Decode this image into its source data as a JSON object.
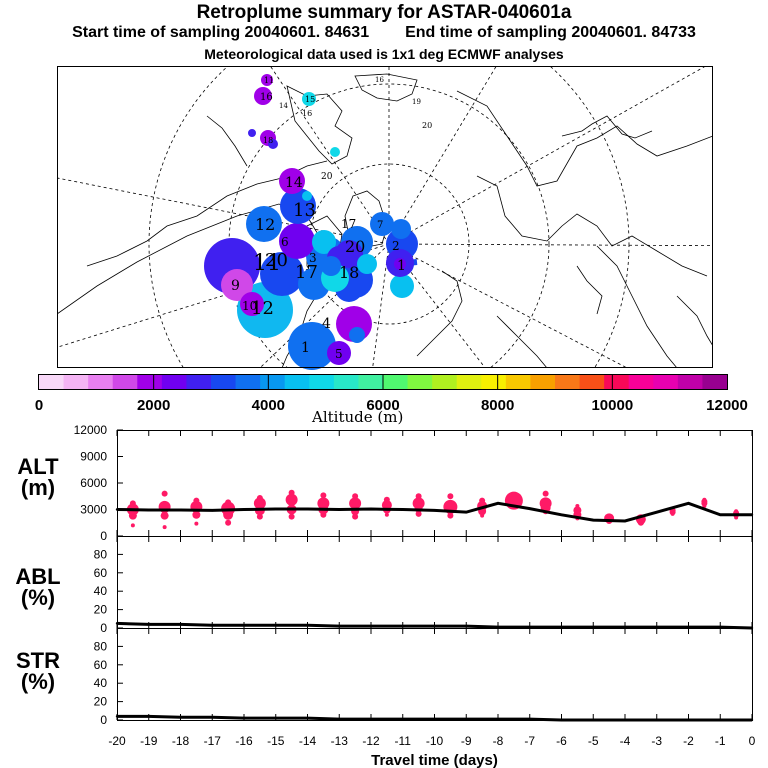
{
  "title": "Retroplume summary for ASTAR-040601a",
  "sampling": {
    "start": "Start time of sampling 20040601. 84631",
    "end": "End time of sampling 20040601. 84733"
  },
  "met_note": "Meteorological data used is 1x1 deg ECMWF analyses",
  "colors": {
    "track": "#000000",
    "dot": "#ff1a66",
    "map_line": "#000000",
    "frame": "#000000"
  },
  "colorbar": {
    "ticks": [
      "0",
      "2000",
      "4000",
      "6000",
      "8000",
      "10000",
      "12000"
    ],
    "label": "Altitude (m)",
    "segments": [
      "#f8d8f8",
      "#f4b4f4",
      "#e880f0",
      "#d048e8",
      "#a000e8",
      "#7000f0",
      "#4020f0",
      "#1848f0",
      "#1070f0",
      "#0898f0",
      "#08c0f0",
      "#10d8e8",
      "#28e8c8",
      "#40f0a0",
      "#50f870",
      "#80f840",
      "#b0f020",
      "#e0f010",
      "#f8f000",
      "#f8c800",
      "#f8a000",
      "#f87818",
      "#f85018",
      "#f80858",
      "#f80098",
      "#e800b0",
      "#c000a8",
      "#980090"
    ]
  },
  "map_labels": {
    "plumes": [
      {
        "text": "1"
      },
      {
        "text": "2"
      },
      {
        "text": "3"
      },
      {
        "text": "4"
      },
      {
        "text": "5"
      },
      {
        "text": "6"
      },
      {
        "text": "7"
      },
      {
        "text": "8"
      },
      {
        "text": "9"
      },
      {
        "text": "10"
      },
      {
        "text": "11"
      },
      {
        "text": "12"
      },
      {
        "text": "13"
      },
      {
        "text": "14"
      },
      {
        "text": "15"
      },
      {
        "text": "16"
      },
      {
        "text": "17"
      },
      {
        "text": "18"
      },
      {
        "text": "19"
      },
      {
        "text": "20"
      }
    ]
  },
  "panels": {
    "alt": {
      "label": "ALT\n(m)",
      "yticks": [
        "12000",
        "9000",
        "6000",
        "3000",
        "0"
      ]
    },
    "abl": {
      "label": "ABL\n(%)",
      "yticks": [
        "80",
        "60",
        "40",
        "20",
        "0"
      ]
    },
    "str": {
      "label": "STR\n(%)",
      "yticks": [
        "80",
        "60",
        "40",
        "20",
        "0"
      ]
    }
  },
  "chart_data": {
    "type": "line",
    "xlabel": "Travel time (days)",
    "x_ticks": [
      "-20",
      "-19",
      "-18",
      "-17",
      "-16",
      "-15",
      "-14",
      "-13",
      "-12",
      "-11",
      "-10",
      "-9",
      "-8",
      "-7",
      "-6",
      "-5",
      "-4",
      "-3",
      "-2",
      "-1",
      "0"
    ],
    "x": [
      -20,
      -19,
      -18,
      -17,
      -16,
      -15,
      -14,
      -13,
      -12,
      -11,
      -10,
      -9,
      -8,
      -7,
      -6,
      -5,
      -4,
      -3,
      -2,
      -1,
      0
    ],
    "xlim": [
      -20,
      0
    ],
    "series": [
      {
        "name": "ALT",
        "ylim": [
          0,
          12000
        ],
        "values": [
          3000,
          2950,
          2950,
          2900,
          3000,
          3050,
          3050,
          3000,
          3050,
          3000,
          2900,
          2700,
          3700,
          3100,
          2400,
          1800,
          1700,
          2700,
          3700,
          2400,
          2400
        ]
      },
      {
        "name": "ABL",
        "ylim": [
          0,
          100
        ],
        "values": [
          5,
          4,
          4,
          3,
          3,
          3,
          3,
          2,
          2,
          2,
          2,
          2,
          1,
          1,
          1,
          1,
          1,
          1,
          1,
          1,
          0
        ]
      },
      {
        "name": "STR",
        "ylim": [
          0,
          100
        ],
        "values": [
          4,
          4,
          3,
          3,
          2,
          2,
          2,
          1,
          1,
          1,
          1,
          1,
          1,
          1,
          0,
          0,
          0,
          0,
          0,
          0,
          0
        ]
      }
    ],
    "alt_spread": [
      [
        1200,
        2300,
        3000,
        3700
      ],
      [
        1000,
        2300,
        3300,
        4800
      ],
      [
        1400,
        2400,
        3300,
        4000
      ],
      [
        1500,
        2400,
        3100,
        3800
      ],
      [
        2200,
        2900,
        3700,
        4300
      ],
      [
        2200,
        3000,
        4100,
        4900
      ],
      [
        2400,
        3000,
        3700,
        4600
      ],
      [
        2200,
        2800,
        3700,
        4500
      ],
      [
        2400,
        3000,
        3500,
        4100
      ],
      [
        2500,
        3100,
        3700,
        4500
      ],
      [
        2300,
        2900,
        3300,
        4500
      ],
      [
        2300,
        2800,
        3400,
        4000
      ],
      [
        3600,
        3900,
        4000,
        4400
      ],
      [
        2800,
        3200,
        3700,
        4800
      ],
      [
        2000,
        2400,
        2900,
        3400
      ],
      [
        1700,
        1900,
        2000,
        2200
      ],
      [
        1500,
        1700,
        1900,
        2000
      ],
      [
        2500,
        2700,
        2900,
        3100
      ],
      [
        3400,
        3700,
        3900,
        4100
      ],
      [
        2100,
        2400,
        2600,
        2800
      ]
    ],
    "alt_spread_sizes": [
      [
        2,
        4,
        6,
        3
      ],
      [
        2,
        4,
        6,
        3
      ],
      [
        2,
        4,
        6,
        3
      ],
      [
        3,
        5,
        7,
        3
      ],
      [
        3,
        5,
        6,
        3
      ],
      [
        3,
        5,
        6,
        3
      ],
      [
        3,
        5,
        6,
        3
      ],
      [
        3,
        4,
        6,
        3
      ],
      [
        2,
        4,
        5,
        3
      ],
      [
        3,
        4,
        6,
        3
      ],
      [
        3,
        4,
        7,
        3
      ],
      [
        2,
        4,
        5,
        3
      ],
      [
        4,
        7,
        9,
        3
      ],
      [
        3,
        5,
        6,
        3
      ],
      [
        2,
        4,
        4,
        2
      ],
      [
        3,
        4,
        5,
        3
      ],
      [
        3,
        4,
        5,
        3
      ],
      [
        2,
        3,
        3,
        2
      ],
      [
        2,
        3,
        3,
        2
      ],
      [
        2,
        3,
        3,
        2
      ]
    ]
  }
}
